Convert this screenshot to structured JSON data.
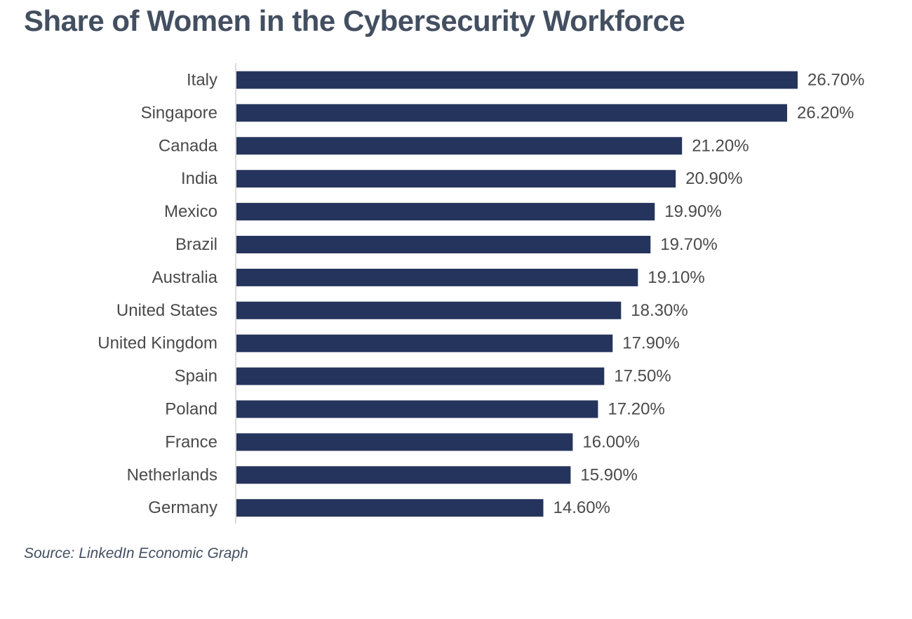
{
  "title": "Share of Women in the Cybersecurity Workforce",
  "source": "Source: LinkedIn Economic Graph",
  "colors": {
    "bar": "#25345c",
    "title_text": "#434f61",
    "label_text": "#4a4a4a",
    "axis_line": "#d0d0d0"
  },
  "chart_data": {
    "type": "bar",
    "orientation": "horizontal",
    "categories": [
      "Italy",
      "Singapore",
      "Canada",
      "India",
      "Mexico",
      "Brazil",
      "Australia",
      "United States",
      "United Kingdom",
      "Spain",
      "Poland",
      "France",
      "Netherlands",
      "Germany"
    ],
    "values": [
      26.7,
      26.2,
      21.2,
      20.9,
      19.9,
      19.7,
      19.1,
      18.3,
      17.9,
      17.5,
      17.2,
      16.0,
      15.9,
      14.6
    ],
    "value_labels": [
      "26.70%",
      "26.20%",
      "21.20%",
      "20.90%",
      "19.90%",
      "19.70%",
      "19.10%",
      "18.30%",
      "17.90%",
      "17.50%",
      "17.20%",
      "16.00%",
      "15.90%",
      "14.60%"
    ],
    "title": "Share of Women in the Cybersecurity Workforce",
    "xlim": [
      0,
      26.7
    ],
    "grid": false,
    "legend": false
  }
}
